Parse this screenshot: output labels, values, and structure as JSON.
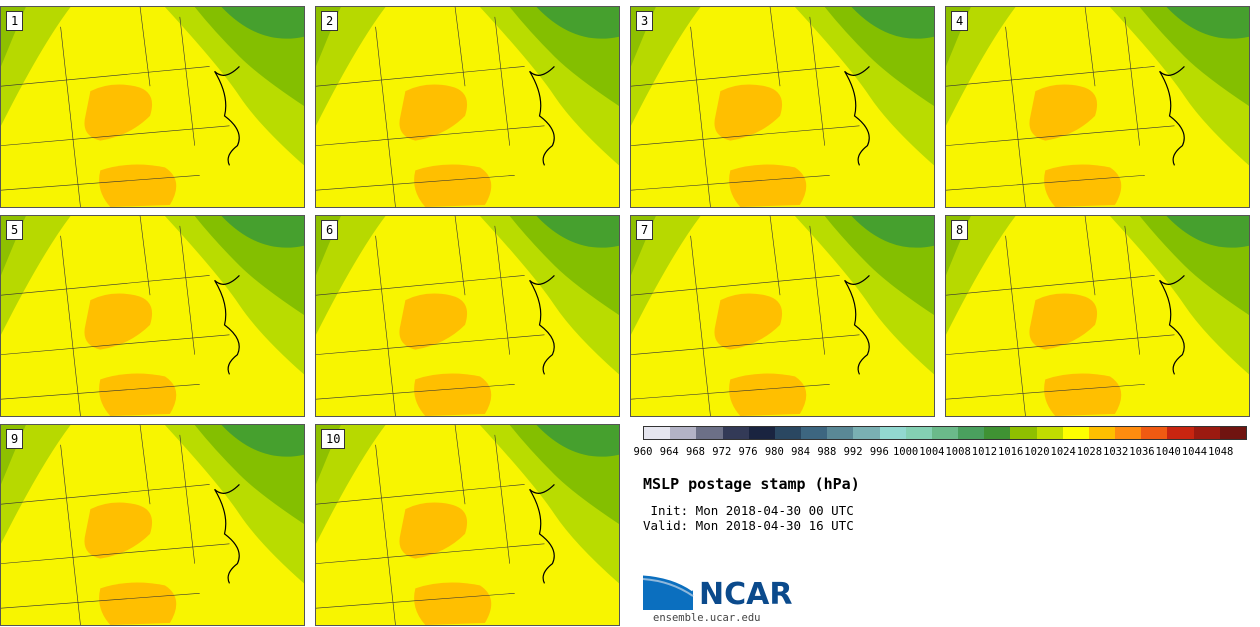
{
  "panels": [
    {
      "label": "1"
    },
    {
      "label": "2"
    },
    {
      "label": "3"
    },
    {
      "label": "4"
    },
    {
      "label": "5"
    },
    {
      "label": "6"
    },
    {
      "label": "7"
    },
    {
      "label": "8"
    },
    {
      "label": "9"
    },
    {
      "label": "10"
    }
  ],
  "colorbar": {
    "ticks": [
      "960",
      "964",
      "968",
      "972",
      "976",
      "980",
      "984",
      "988",
      "992",
      "996",
      "1000",
      "1004",
      "1008",
      "1012",
      "1016",
      "1020",
      "1024",
      "1028",
      "1032",
      "1036",
      "1040",
      "1044",
      "1048"
    ],
    "colors": [
      "#e6e6ef",
      "#b3b3c6",
      "#6c7087",
      "#333a57",
      "#1a2440",
      "#2a4761",
      "#3d6680",
      "#5a8896",
      "#7ab0b3",
      "#92d8d0",
      "#84d0b3",
      "#6bba8a",
      "#4aa05e",
      "#3f9233",
      "#8fbf00",
      "#c1dc00",
      "#ffff00",
      "#ffbf00",
      "#ff8c0f",
      "#f05a12",
      "#c82510",
      "#9b1a10",
      "#701410"
    ]
  },
  "title": "MSLP postage stamp (hPa)",
  "init": " Init: Mon 2018-04-30 00 UTC",
  "valid": "Valid: Mon 2018-04-30 16 UTC",
  "logo": {
    "text": "NCAR",
    "url": "ensemble.ucar.edu"
  }
}
